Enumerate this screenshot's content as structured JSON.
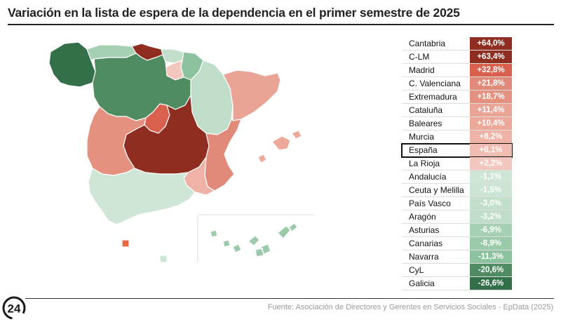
{
  "title": "Variación en la lista de espera de la dependencia en el primer semestre de 2025",
  "source": "Fuente: Asociación de Directores y Gerentes en Servicios Sociales - EpData (2025)",
  "logo_text": "24",
  "highlight_region": "España",
  "colors": {
    "max_positive": "#8e2a1d",
    "max_negative": "#33704a",
    "outline": "#111111"
  },
  "rows": [
    {
      "name": "Cantabria",
      "value": "+64,0%",
      "num": 64.0,
      "bg": "#8e2d20",
      "fg": "#ffffff"
    },
    {
      "name": "C-LM",
      "value": "+63,4%",
      "num": 63.4,
      "bg": "#8e2d20",
      "fg": "#ffffff"
    },
    {
      "name": "Madrid",
      "value": "+32,8%",
      "num": 32.8,
      "bg": "#d8604d",
      "fg": "#ffffff"
    },
    {
      "name": "C. Valenciana",
      "value": "+21,8%",
      "num": 21.8,
      "bg": "#e28a79",
      "fg": "#ffffff"
    },
    {
      "name": "Extremadura",
      "value": "+18,7%",
      "num": 18.7,
      "bg": "#e4917f",
      "fg": "#ffffff"
    },
    {
      "name": "Cataluña",
      "value": "+11,4%",
      "num": 11.4,
      "bg": "#eaa496",
      "fg": "#ffffff"
    },
    {
      "name": "Baleares",
      "value": "+10,4%",
      "num": 10.4,
      "bg": "#eca899",
      "fg": "#ffffff"
    },
    {
      "name": "Murcia",
      "value": "+8,2%",
      "num": 8.2,
      "bg": "#eeb2a6",
      "fg": "#ffffff"
    },
    {
      "name": "España",
      "value": "+6,1%",
      "num": 6.1,
      "bg": "#f1bcb2",
      "fg": "#ffffff"
    },
    {
      "name": "La Rioja",
      "value": "+2,2%",
      "num": 2.2,
      "bg": "#f3c6be",
      "fg": "#ffffff"
    },
    {
      "name": "Andalucía",
      "value": "-1,1%",
      "num": -1.1,
      "bg": "#cfe6d6",
      "fg": "#ffffff"
    },
    {
      "name": "Ceuta y Melilla",
      "value": "-1,5%",
      "num": -1.5,
      "bg": "#cbe4d3",
      "fg": "#ffffff"
    },
    {
      "name": "País Vasco",
      "value": "-3,0%",
      "num": -3.0,
      "bg": "#c2dfcb",
      "fg": "#ffffff"
    },
    {
      "name": "Aragón",
      "value": "-3,2%",
      "num": -3.2,
      "bg": "#c0ddc9",
      "fg": "#ffffff"
    },
    {
      "name": "Asturias",
      "value": "-6,9%",
      "num": -6.9,
      "bg": "#a6d0b3",
      "fg": "#ffffff"
    },
    {
      "name": "Canarias",
      "value": "-8,9%",
      "num": -8.9,
      "bg": "#9acaa9",
      "fg": "#ffffff"
    },
    {
      "name": "Navarra",
      "value": "-11,3%",
      "num": -11.3,
      "bg": "#8cc29d",
      "fg": "#ffffff"
    },
    {
      "name": "CyL",
      "value": "-20,6%",
      "num": -20.6,
      "bg": "#4f8c61",
      "fg": "#ffffff"
    },
    {
      "name": "Galicia",
      "value": "-26,6%",
      "num": -26.6,
      "bg": "#33704a",
      "fg": "#ffffff"
    }
  ],
  "map_regions": [
    {
      "id": "galicia",
      "color": "#33704a"
    },
    {
      "id": "asturias",
      "color": "#a6d0b3"
    },
    {
      "id": "cantabria",
      "color": "#8e2d20"
    },
    {
      "id": "pais-vasco",
      "color": "#c2dfcb"
    },
    {
      "id": "navarra",
      "color": "#8cc29d"
    },
    {
      "id": "la-rioja",
      "color": "#f3c6be"
    },
    {
      "id": "aragon",
      "color": "#c0ddc9"
    },
    {
      "id": "cataluna",
      "color": "#eaa496"
    },
    {
      "id": "castilla-y-leon",
      "color": "#4f8c61"
    },
    {
      "id": "madrid",
      "color": "#d8604d"
    },
    {
      "id": "castilla-la-mancha",
      "color": "#8e2d20"
    },
    {
      "id": "c-valenciana",
      "color": "#e28a79"
    },
    {
      "id": "extremadura",
      "color": "#e4917f"
    },
    {
      "id": "andalucia",
      "color": "#cfe6d6"
    },
    {
      "id": "murcia",
      "color": "#eeb2a6"
    },
    {
      "id": "baleares",
      "color": "#eca899"
    },
    {
      "id": "canarias",
      "color": "#9acaa9"
    },
    {
      "id": "ceuta",
      "color": "#e8683f"
    },
    {
      "id": "melilla",
      "color": "#cfe6d6"
    }
  ]
}
